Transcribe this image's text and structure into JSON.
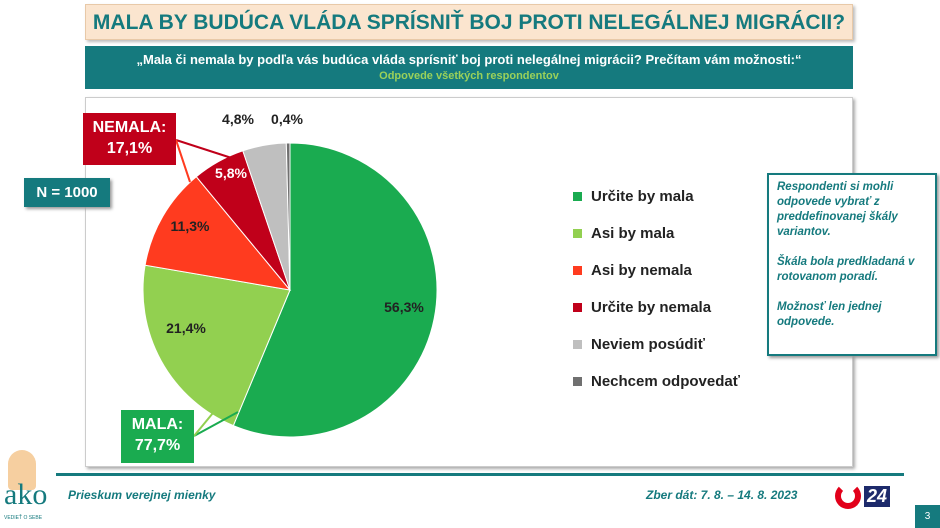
{
  "header": {
    "title": "MALA BY BUDÚCA VLÁDA SPRÍSNIŤ BOJ PROTI NELEGÁLNEJ MIGRÁCII?",
    "question": "„Mala či nemala by podľa vás budúca vláda sprísniť boj proti nelegálnej migrácii? Prečítam vám možnosti:“",
    "subtitle": "Odpovede všetkých respondentov"
  },
  "sample": "N = 1000",
  "callouts": {
    "nemala": "NEMALA:",
    "nemala_value": "17,1%",
    "mala": "MALA:",
    "mala_value": "77,7%"
  },
  "chart_data": {
    "type": "pie",
    "start": "top",
    "direction": "clockwise",
    "legend_position": "right",
    "categories": [
      "Určite by mala",
      "Asi by mala",
      "Asi by nemala",
      "Určite by nemala",
      "Neviem posúdiť",
      "Nechcem odpovedať"
    ],
    "values": [
      56.3,
      21.4,
      11.3,
      5.8,
      4.8,
      0.4
    ],
    "labels": [
      "56,3%",
      "21,4%",
      "11,3%",
      "5,8%",
      "4,8%",
      "0,4%"
    ],
    "colors": [
      "#1aab50",
      "#92d050",
      "#ff3b1f",
      "#c0001a",
      "#bfbfbf",
      "#707070"
    ]
  },
  "note": [
    "Respondenti si mohli odpovede vybrať z preddefinovanej škály variantov.",
    "Škála bola predkladaná v rotovanom poradí.",
    "Možnosť len jednej odpovede."
  ],
  "footer": {
    "survey": "Prieskum verejnej mienky",
    "dates": "Zber dát: 7. 8. – 14. 8. 2023",
    "logo": "ako",
    "tagline": "VEDIEŤ O SEBE",
    "tv_logo": "24",
    "page": "3"
  }
}
